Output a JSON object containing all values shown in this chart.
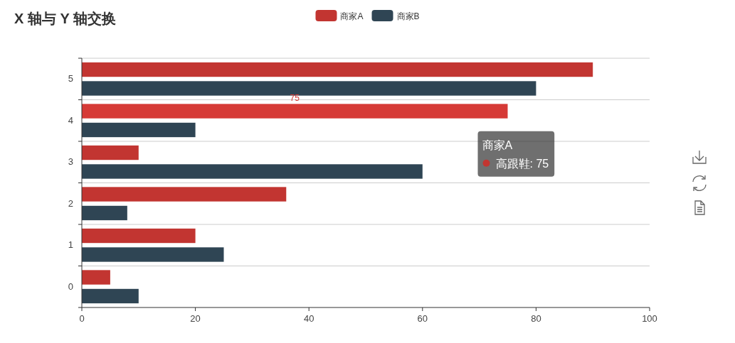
{
  "chart_data": {
    "type": "bar",
    "orientation": "horizontal",
    "title": "X 轴与 Y 轴交换",
    "categories": [
      "5",
      "4",
      "3",
      "2",
      "1",
      "0"
    ],
    "series": [
      {
        "name": "商家A",
        "color": "#c23531",
        "colors": [
          "#c23531",
          "#d63a36",
          "#c23531",
          "#c23531",
          "#c23531",
          "#c23531"
        ],
        "values": [
          90,
          75,
          10,
          36,
          20,
          5
        ],
        "value_labels": [
          null,
          "75",
          null,
          null,
          null,
          null
        ]
      },
      {
        "name": "商家B",
        "color": "#2f4554",
        "values": [
          80,
          20,
          60,
          8,
          25,
          10
        ]
      }
    ],
    "xlim": [
      0,
      100
    ],
    "xticks": [
      0,
      20,
      40,
      60,
      80,
      100
    ],
    "grid": "y",
    "legend": "top",
    "annotations": [
      {
        "text": "商家A\n高跟鞋: 75",
        "x": 75,
        "y": "4"
      }
    ]
  }
}
